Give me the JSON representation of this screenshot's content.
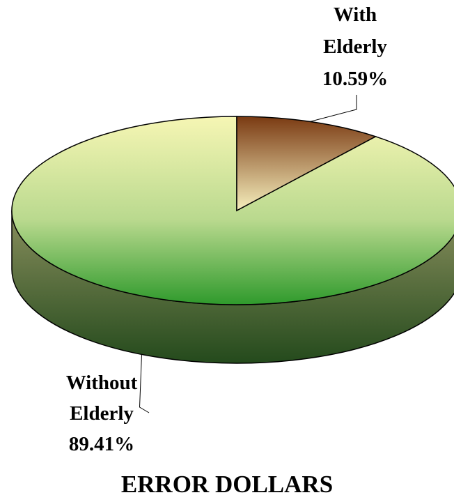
{
  "chart_data": {
    "type": "pie",
    "title": "ERROR DOLLARS",
    "slices": [
      {
        "name_lines": [
          "With",
          "Elderly"
        ],
        "value_label": "10.59%",
        "value": 10.59
      },
      {
        "name_lines": [
          "Without",
          "Elderly"
        ],
        "value_label": "89.41%",
        "value": 89.41
      }
    ],
    "colors": {
      "with_light": "#f6efbd",
      "with_dark": "#7a3a12",
      "without_light": "#f6f6b4",
      "without_mid": "#b9d98e",
      "without_dark": "#2f9a2c",
      "side_light": "#8a8f5e",
      "side_dark": "#244a1c"
    },
    "three_d": true,
    "legend": "none"
  }
}
